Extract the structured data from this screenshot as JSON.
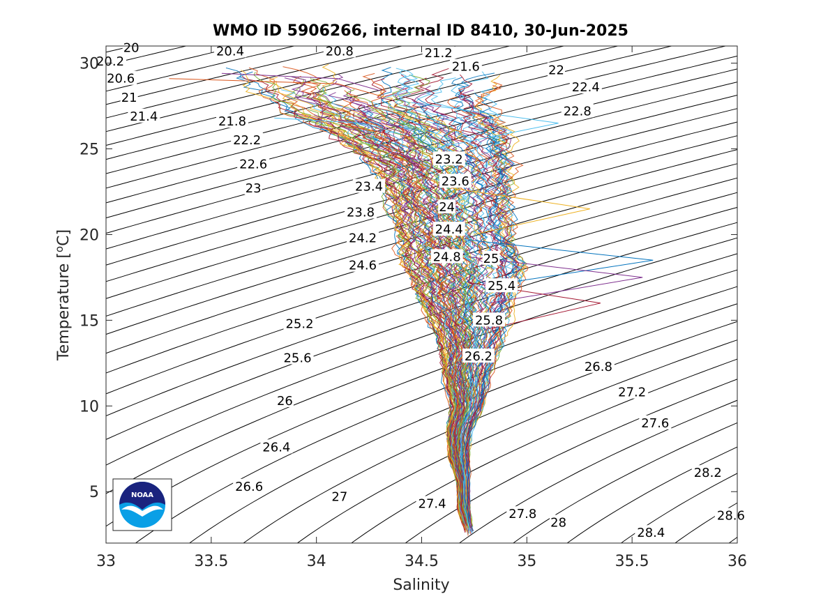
{
  "chart_data": {
    "type": "line",
    "title": "WMO ID 5906266, internal ID 8410, 30-Jun-2025",
    "xlabel": "Salinity",
    "ylabel_main": "Temperature [",
    "ylabel_sup": "o",
    "ylabel_tail": "C]",
    "xlim": [
      33,
      36
    ],
    "ylim": [
      2,
      31
    ],
    "x_ticks": [
      33,
      33.5,
      34,
      34.5,
      35,
      35.5,
      36
    ],
    "x_tick_labels": [
      "33",
      "33.5",
      "34",
      "34.5",
      "35",
      "35.5",
      "36"
    ],
    "y_ticks": [
      5,
      10,
      15,
      20,
      25,
      30
    ],
    "y_tick_labels": [
      "5",
      "10",
      "15",
      "20",
      "25",
      "30"
    ],
    "grid": false,
    "density_contours": {
      "levels": [
        20,
        20.2,
        20.4,
        20.6,
        20.8,
        21,
        21.2,
        21.4,
        21.6,
        21.8,
        22,
        22.2,
        22.4,
        22.6,
        22.8,
        23,
        23.2,
        23.4,
        23.6,
        23.8,
        24,
        24.2,
        24.4,
        24.6,
        24.8,
        25,
        25.2,
        25.4,
        25.6,
        25.8,
        26,
        26.2,
        26.4,
        26.6,
        26.8,
        27,
        27.2,
        27.4,
        27.6,
        27.8,
        28,
        28.2,
        28.4,
        28.6
      ],
      "labels": [
        {
          "text": "20",
          "s": 33.12,
          "t": 30.9
        },
        {
          "text": "20.2",
          "s": 33.02,
          "t": 30.1
        },
        {
          "text": "20.4",
          "s": 33.59,
          "t": 30.7
        },
        {
          "text": "20.6",
          "s": 33.07,
          "t": 29.1
        },
        {
          "text": "20.8",
          "s": 34.11,
          "t": 30.7
        },
        {
          "text": "21",
          "s": 33.11,
          "t": 28.0
        },
        {
          "text": "21.2",
          "s": 34.58,
          "t": 30.6
        },
        {
          "text": "21.4",
          "s": 33.18,
          "t": 26.9
        },
        {
          "text": "21.6",
          "s": 34.71,
          "t": 29.8
        },
        {
          "text": "21.8",
          "s": 33.6,
          "t": 26.6
        },
        {
          "text": "22",
          "s": 35.14,
          "t": 29.6
        },
        {
          "text": "22.2",
          "s": 33.67,
          "t": 25.5
        },
        {
          "text": "22.4",
          "s": 35.28,
          "t": 28.6
        },
        {
          "text": "22.6",
          "s": 33.7,
          "t": 24.1
        },
        {
          "text": "22.8",
          "s": 35.24,
          "t": 27.2
        },
        {
          "text": "23",
          "s": 33.7,
          "t": 22.7
        },
        {
          "text": "23.2",
          "s": 34.63,
          "t": 24.4
        },
        {
          "text": "23.4",
          "s": 34.25,
          "t": 22.8
        },
        {
          "text": "23.6",
          "s": 34.66,
          "t": 23.1
        },
        {
          "text": "23.8",
          "s": 34.21,
          "t": 21.3
        },
        {
          "text": "24",
          "s": 34.62,
          "t": 21.6
        },
        {
          "text": "24.2",
          "s": 34.22,
          "t": 19.8
        },
        {
          "text": "24.4",
          "s": 34.63,
          "t": 20.3
        },
        {
          "text": "24.6",
          "s": 34.22,
          "t": 18.2
        },
        {
          "text": "24.8",
          "s": 34.62,
          "t": 18.7
        },
        {
          "text": "25",
          "s": 34.83,
          "t": 18.6
        },
        {
          "text": "25.2",
          "s": 33.92,
          "t": 14.8
        },
        {
          "text": "25.4",
          "s": 34.88,
          "t": 17.0
        },
        {
          "text": "25.6",
          "s": 33.91,
          "t": 12.8
        },
        {
          "text": "25.8",
          "s": 34.82,
          "t": 15.0
        },
        {
          "text": "26",
          "s": 33.85,
          "t": 10.3
        },
        {
          "text": "26.2",
          "s": 34.77,
          "t": 12.9
        },
        {
          "text": "26.4",
          "s": 33.81,
          "t": 7.6
        },
        {
          "text": "26.6",
          "s": 33.68,
          "t": 5.3
        },
        {
          "text": "26.8",
          "s": 35.34,
          "t": 12.3
        },
        {
          "text": "27",
          "s": 34.11,
          "t": 4.7
        },
        {
          "text": "27.2",
          "s": 35.5,
          "t": 10.8
        },
        {
          "text": "27.4",
          "s": 34.55,
          "t": 4.3
        },
        {
          "text": "27.6",
          "s": 35.61,
          "t": 9.0
        },
        {
          "text": "27.8",
          "s": 34.98,
          "t": 3.7
        },
        {
          "text": "28",
          "s": 35.15,
          "t": 3.2
        },
        {
          "text": "28.2",
          "s": 35.86,
          "t": 6.1
        },
        {
          "text": "28.4",
          "s": 35.59,
          "t": 2.6
        },
        {
          "text": "28.6",
          "s": 35.97,
          "t": 3.6
        }
      ]
    },
    "profile_envelope": {
      "description_level": "profiles",
      "profile_count": 120,
      "spine": [
        {
          "t": 29.8,
          "s": 34.3
        },
        {
          "t": 28.0,
          "s": 34.3
        },
        {
          "t": 26.0,
          "s": 34.5
        },
        {
          "t": 24.0,
          "s": 34.62
        },
        {
          "t": 22.0,
          "s": 34.64
        },
        {
          "t": 20.0,
          "s": 34.67
        },
        {
          "t": 18.0,
          "s": 34.72
        },
        {
          "t": 16.0,
          "s": 34.72
        },
        {
          "t": 14.0,
          "s": 34.74
        },
        {
          "t": 12.0,
          "s": 34.72
        },
        {
          "t": 10.0,
          "s": 34.72
        },
        {
          "t": 8.5,
          "s": 34.68
        },
        {
          "t": 7.0,
          "s": 34.68
        },
        {
          "t": 5.5,
          "s": 34.7
        },
        {
          "t": 4.0,
          "s": 34.7
        },
        {
          "t": 2.5,
          "s": 34.73
        }
      ],
      "halfwidth": [
        {
          "t": 29.8,
          "s": 0.7
        },
        {
          "t": 28.0,
          "s": 0.55
        },
        {
          "t": 26.0,
          "s": 0.45
        },
        {
          "t": 24.0,
          "s": 0.35
        },
        {
          "t": 22.0,
          "s": 0.3
        },
        {
          "t": 20.0,
          "s": 0.28
        },
        {
          "t": 18.0,
          "s": 0.3
        },
        {
          "t": 16.0,
          "s": 0.22
        },
        {
          "t": 14.0,
          "s": 0.16
        },
        {
          "t": 12.0,
          "s": 0.12
        },
        {
          "t": 10.0,
          "s": 0.08
        },
        {
          "t": 8.5,
          "s": 0.06
        },
        {
          "t": 7.0,
          "s": 0.05
        },
        {
          "t": 5.5,
          "s": 0.03
        },
        {
          "t": 4.0,
          "s": 0.03
        },
        {
          "t": 2.5,
          "s": 0.02
        }
      ],
      "outliers_right": [
        {
          "t": 18.5,
          "s": 35.6
        },
        {
          "t": 17.5,
          "s": 35.55
        },
        {
          "t": 16.0,
          "s": 35.35
        },
        {
          "t": 21.5,
          "s": 35.3
        },
        {
          "t": 26.5,
          "s": 35.15
        }
      ],
      "outliers_left": [
        {
          "t": 29.1,
          "s": 33.3
        },
        {
          "t": 29.4,
          "s": 33.55
        },
        {
          "t": 26.8,
          "s": 33.8
        }
      ]
    },
    "colors": [
      "#0072bd",
      "#d95319",
      "#edb120",
      "#7e2f8e",
      "#77ac30",
      "#4dbeee",
      "#a2142f"
    ],
    "logo": {
      "text": "NOAA"
    }
  }
}
